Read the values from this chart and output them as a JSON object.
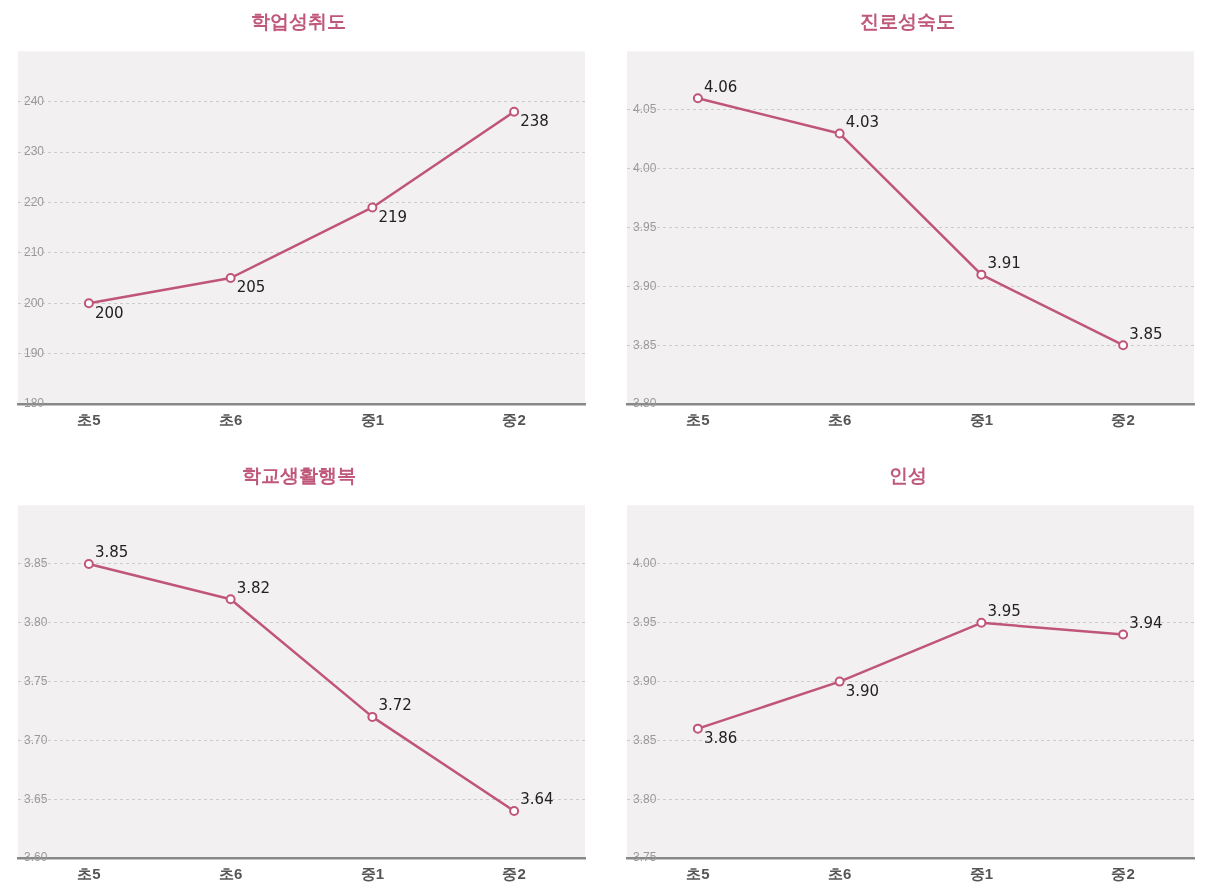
{
  "chart_data": [
    {
      "type": "line",
      "title": "학업성취도",
      "categories": [
        "초5",
        "초6",
        "중1",
        "중2"
      ],
      "series": [
        {
          "color": "#c0557a",
          "values": [
            200,
            205,
            219,
            238
          ]
        }
      ],
      "ylim": [
        180,
        250
      ],
      "yticks": [
        180,
        190,
        200,
        210,
        220,
        230,
        240
      ],
      "grid": "y",
      "marker": "circle",
      "data_labels": true
    },
    {
      "type": "line",
      "title": "진로성숙도",
      "categories": [
        "초5",
        "초6",
        "중1",
        "중2"
      ],
      "series": [
        {
          "color": "#c0557a",
          "values": [
            4.06,
            4.03,
            3.91,
            3.85
          ]
        }
      ],
      "ylim": [
        3.8,
        4.1
      ],
      "yticks": [
        {
          "value": 3.8,
          "label": "3.80"
        },
        {
          "value": 3.85,
          "label": "3.85"
        },
        {
          "value": 3.9,
          "label": "3.90"
        },
        {
          "value": 3.95,
          "label": "3.95"
        },
        {
          "value": 4,
          "label": "4.00"
        },
        {
          "value": 4.05,
          "label": "4.05"
        }
      ],
      "grid": "y",
      "marker": "circle",
      "data_labels": true
    },
    {
      "type": "line",
      "title": "학교생활행복",
      "categories": [
        "초5",
        "초6",
        "중1",
        "중2"
      ],
      "series": [
        {
          "color": "#c0557a",
          "values": [
            3.85,
            3.82,
            3.72,
            3.64
          ]
        }
      ],
      "ylim": [
        3.6,
        3.9
      ],
      "yticks": [
        {
          "value": 3.6,
          "label": "3.60"
        },
        {
          "value": 3.65,
          "label": "3.65"
        },
        {
          "value": 3.7,
          "label": "3.70"
        },
        {
          "value": 3.75,
          "label": "3.75"
        },
        {
          "value": 3.8,
          "label": "3.80"
        },
        {
          "value": 3.85,
          "label": "3.85"
        }
      ],
      "grid": "y",
      "marker": "circle",
      "data_labels": true
    },
    {
      "type": "line",
      "title": "인성",
      "categories": [
        "초5",
        "초6",
        "중1",
        "중2"
      ],
      "series": [
        {
          "color": "#c0557a",
          "values": [
            3.86,
            3.9,
            3.95,
            3.94
          ],
          "value_labels": [
            "3.86",
            "3.90",
            "3.95",
            "3.94"
          ]
        }
      ],
      "ylim": [
        3.75,
        4.05
      ],
      "yticks": [
        {
          "value": 3.75,
          "label": "3.75"
        },
        {
          "value": 3.8,
          "label": "3.80"
        },
        {
          "value": 3.85,
          "label": "3.85"
        },
        {
          "value": 3.9,
          "label": "3.90"
        },
        {
          "value": 3.95,
          "label": "3.95"
        },
        {
          "value": 4,
          "label": "4.00"
        }
      ],
      "grid": "y",
      "marker": "circle"
    }
  ]
}
